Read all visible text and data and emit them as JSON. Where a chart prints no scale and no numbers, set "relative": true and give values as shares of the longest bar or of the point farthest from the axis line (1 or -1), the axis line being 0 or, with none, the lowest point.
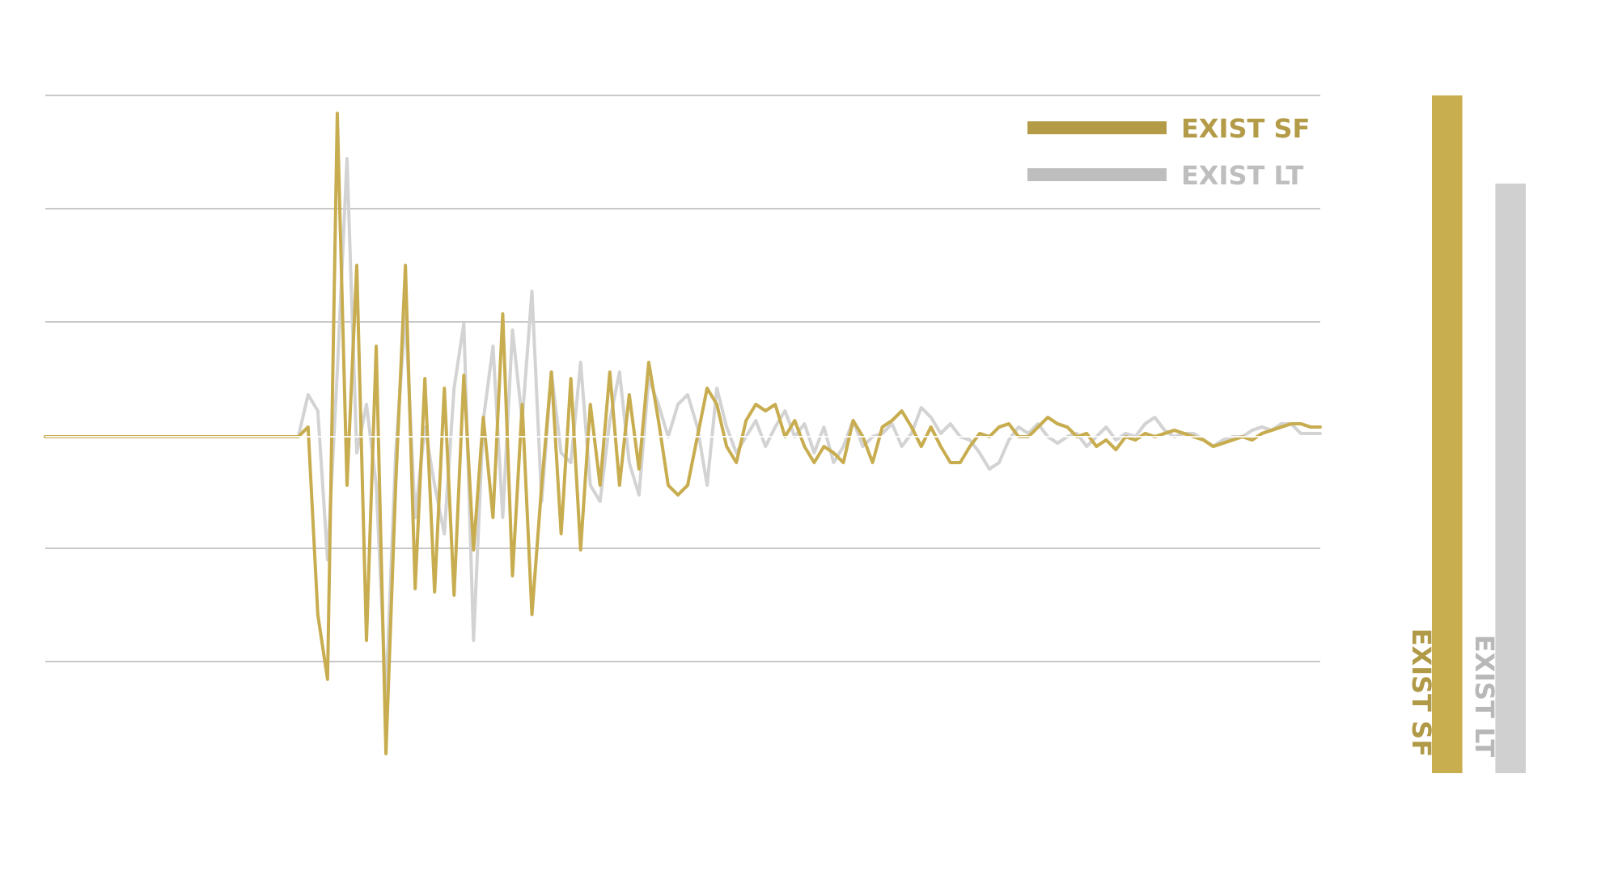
{
  "chart_data": [
    {
      "type": "line",
      "relative": true,
      "grid": "y",
      "legend": "top right",
      "categories": [
        null,
        null,
        null,
        null,
        null,
        null,
        null,
        null,
        null,
        null,
        null,
        null,
        null,
        null,
        null,
        null,
        null,
        null,
        null,
        null,
        null,
        null,
        null,
        null,
        null,
        null,
        null,
        null,
        null,
        null,
        null,
        null,
        null,
        null,
        null,
        null,
        null,
        null,
        null,
        null,
        null,
        null,
        null,
        null,
        null,
        null,
        null,
        null,
        null,
        null,
        null,
        null,
        null,
        null,
        null,
        null,
        null,
        null,
        null,
        null,
        null,
        null,
        null,
        null,
        null,
        null,
        null,
        null,
        null,
        null,
        null,
        null,
        null,
        null,
        null,
        null,
        null,
        null,
        null,
        null,
        null,
        null,
        null,
        null,
        null,
        null,
        null,
        null,
        null,
        null,
        null,
        null,
        null,
        null,
        null,
        null,
        null,
        null,
        null,
        null,
        null,
        null,
        null,
        null,
        null,
        null,
        null,
        null,
        null,
        null,
        null,
        null,
        null,
        null,
        null,
        null,
        null,
        null,
        null,
        null,
        null,
        null,
        null,
        null,
        null,
        null,
        null,
        null,
        null,
        null,
        null,
        null
      ],
      "series": [
        {
          "name": "EXIST LT",
          "color": "#d3d3d3",
          "values": [
            0,
            0,
            0,
            0,
            0,
            0,
            0,
            0,
            0,
            0,
            0,
            0,
            0,
            0,
            0,
            0,
            0,
            0,
            0,
            0,
            0,
            0,
            0,
            0,
            0,
            0,
            0,
            0.13,
            0.08,
            -0.38,
            0.2,
            0.86,
            -0.05,
            0.1,
            -0.15,
            -0.8,
            -0.05,
            0.38,
            -0.25,
            0.03,
            -0.15,
            -0.3,
            0.15,
            0.35,
            -0.63,
            0.05,
            0.28,
            -0.25,
            0.33,
            0.05,
            0.45,
            -0.2,
            0.2,
            -0.05,
            -0.08,
            0.23,
            -0.15,
            -0.2,
            0.05,
            0.2,
            -0.08,
            -0.18,
            0.18,
            0.1,
            0,
            0.1,
            0.13,
            0.03,
            -0.15,
            0.15,
            0.03,
            -0.05,
            0,
            0.05,
            -0.03,
            0.03,
            0.08,
            0,
            0.04,
            -0.05,
            0.03,
            -0.08,
            -0.03,
            0.05,
            -0.03,
            0,
            0.01,
            0.04,
            -0.03,
            0.01,
            0.09,
            0.06,
            0.01,
            0.04,
            0,
            -0.01,
            -0.05,
            -0.1,
            -0.08,
            -0.01,
            0.03,
            0.01,
            0.04,
            0,
            -0.02,
            0,
            0.01,
            -0.03,
            0,
            0.03,
            -0.01,
            0.01,
            0,
            0.04,
            0.06,
            0.02,
            0,
            0.01,
            0.01,
            -0.01,
            -0.03,
            -0.01,
            0,
            0,
            0.02,
            0.03,
            0.02,
            0.04,
            0.04,
            0.01,
            0.01,
            0.01
          ]
        },
        {
          "name": "EXIST SF",
          "color": "#c8ad50",
          "values": [
            0,
            0,
            0,
            0,
            0,
            0,
            0,
            0,
            0,
            0,
            0,
            0,
            0,
            0,
            0,
            0,
            0,
            0,
            0,
            0,
            0,
            0,
            0,
            0,
            0,
            0,
            0,
            0.03,
            -0.55,
            -0.75,
            1,
            -0.15,
            0.53,
            -0.63,
            0.28,
            -0.98,
            -0.15,
            0.53,
            -0.47,
            0.18,
            -0.48,
            0.15,
            -0.49,
            0.19,
            -0.35,
            0.06,
            -0.25,
            0.38,
            -0.43,
            0.1,
            -0.55,
            -0.15,
            0.2,
            -0.3,
            0.18,
            -0.35,
            0.1,
            -0.15,
            0.2,
            -0.15,
            0.13,
            -0.1,
            0.23,
            0.05,
            -0.15,
            -0.18,
            -0.15,
            0,
            0.15,
            0.1,
            -0.03,
            -0.08,
            0.05,
            0.1,
            0.08,
            0.1,
            0,
            0.05,
            -0.03,
            -0.08,
            -0.03,
            -0.05,
            -0.08,
            0.05,
            0,
            -0.08,
            0.03,
            0.05,
            0.08,
            0.03,
            -0.03,
            0.03,
            -0.03,
            -0.08,
            -0.08,
            -0.03,
            0.01,
            0,
            0.03,
            0.04,
            0,
            0,
            0.03,
            0.06,
            0.04,
            0.03,
            0,
            0.01,
            -0.03,
            -0.01,
            -0.04,
            0,
            -0.01,
            0.01,
            0,
            0.01,
            0.02,
            0.01,
            0,
            -0.01,
            -0.03,
            -0.02,
            -0.01,
            0,
            -0.01,
            0.01,
            0.02,
            0.03,
            0.04,
            0.04,
            0.03,
            0.03
          ]
        }
      ]
    },
    {
      "type": "bar",
      "relative": true,
      "categories": [
        "EXIST SF",
        "EXIST LT"
      ],
      "values": [
        1,
        0.87
      ],
      "colors": [
        "#c9ae50",
        "#d0d0d0"
      ]
    }
  ]
}
